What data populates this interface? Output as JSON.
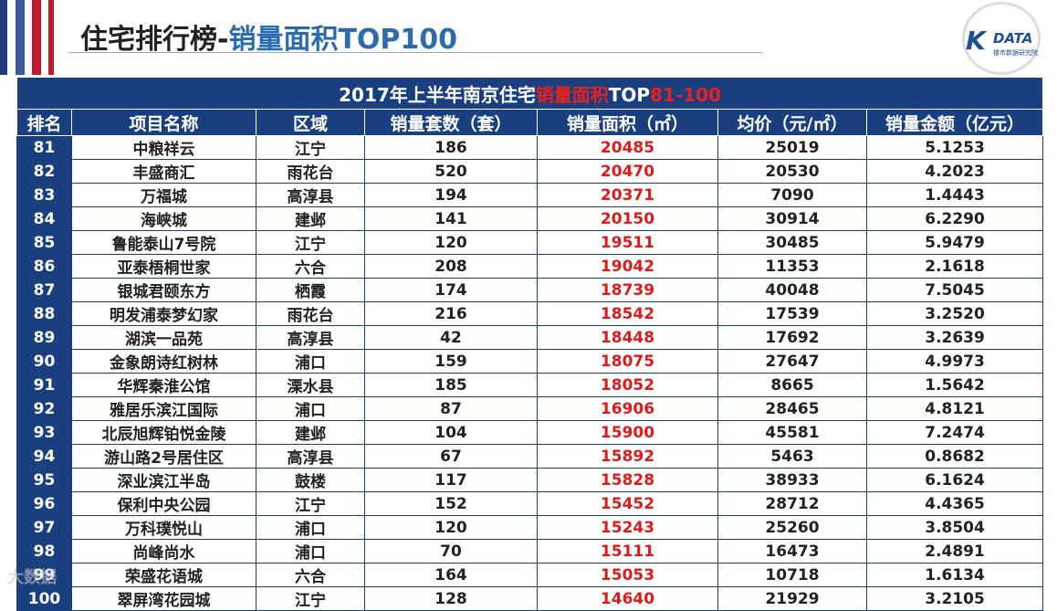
{
  "header": {
    "title_main": "住宅排行榜-",
    "title_highlight": "销量面积TOP100"
  },
  "logo": {
    "k": "K",
    "data": "DATA",
    "sub": "楼市数据研究院"
  },
  "table": {
    "caption_prefix": "2017年上半年南京住宅",
    "caption_highlight1": "销量面积",
    "caption_mid": "TOP",
    "caption_highlight2": "81-100",
    "columns": [
      "排名",
      "项目名称",
      "区域",
      "销量套数（套）",
      "销量面积（㎡）",
      "均价（元/㎡）",
      "销量金额（亿元）"
    ],
    "rows": [
      [
        "81",
        "中粮祥云",
        "江宁",
        "186",
        "20485",
        "25019",
        "5.1253"
      ],
      [
        "82",
        "丰盛商汇",
        "雨花台",
        "520",
        "20470",
        "20530",
        "4.2023"
      ],
      [
        "83",
        "万福城",
        "高淳县",
        "194",
        "20371",
        "7090",
        "1.4443"
      ],
      [
        "84",
        "海峡城",
        "建邺",
        "141",
        "20150",
        "30914",
        "6.2290"
      ],
      [
        "85",
        "鲁能泰山7号院",
        "江宁",
        "120",
        "19511",
        "30485",
        "5.9479"
      ],
      [
        "86",
        "亚泰梧桐世家",
        "六合",
        "208",
        "19042",
        "11353",
        "2.1618"
      ],
      [
        "87",
        "银城君颐东方",
        "栖霞",
        "174",
        "18739",
        "40048",
        "7.5045"
      ],
      [
        "88",
        "明发浦泰梦幻家",
        "雨花台",
        "216",
        "18542",
        "17539",
        "3.2520"
      ],
      [
        "89",
        "湖滨一品苑",
        "高淳县",
        "42",
        "18448",
        "17692",
        "3.2639"
      ],
      [
        "90",
        "金象朗诗红树林",
        "浦口",
        "159",
        "18075",
        "27647",
        "4.9973"
      ],
      [
        "91",
        "华辉秦淮公馆",
        "溧水县",
        "185",
        "18052",
        "8665",
        "1.5642"
      ],
      [
        "92",
        "雅居乐滨江国际",
        "浦口",
        "87",
        "16906",
        "28465",
        "4.8121"
      ],
      [
        "93",
        "北辰旭辉铂悦金陵",
        "建邺",
        "104",
        "15900",
        "45581",
        "7.2474"
      ],
      [
        "94",
        "游山路2号居住区",
        "高淳县",
        "67",
        "15892",
        "5463",
        "0.8682"
      ],
      [
        "95",
        "深业滨江半岛",
        "鼓楼",
        "117",
        "15828",
        "38933",
        "6.1624"
      ],
      [
        "96",
        "保利中央公园",
        "江宁",
        "152",
        "15452",
        "28712",
        "4.4365"
      ],
      [
        "97",
        "万科璞悦山",
        "浦口",
        "120",
        "15243",
        "25260",
        "3.8504"
      ],
      [
        "98",
        "尚峰尚水",
        "浦口",
        "70",
        "15111",
        "16473",
        "2.4891"
      ],
      [
        "99",
        "荣盛花语城",
        "六合",
        "164",
        "15053",
        "10718",
        "1.6134"
      ],
      [
        "100",
        "翠屏湾花园城",
        "江宁",
        "128",
        "14640",
        "21929",
        "3.2105"
      ]
    ]
  },
  "watermark": "大数据"
}
